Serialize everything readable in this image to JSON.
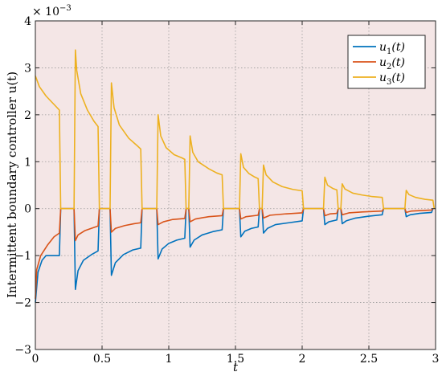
{
  "chart_data": {
    "type": "line",
    "title": "",
    "xlabel": "t",
    "ylabel": "Intermittent boundary controller u(t)",
    "exponent_label": "× 10",
    "exponent_power": "−3",
    "xlim": [
      0,
      3
    ],
    "ylim": [
      -3,
      4
    ],
    "grid": true,
    "legend_position": "top-right",
    "x_ticks": [
      "0",
      "0.5",
      "1",
      "1.5",
      "2",
      "2.5",
      "3"
    ],
    "y_ticks": [
      "−3",
      "−2",
      "−1",
      "0",
      "1",
      "2",
      "3",
      "4"
    ],
    "background_color": "#f4e6e6",
    "series": [
      {
        "name": "u1(t)",
        "legend_main": "u",
        "legend_sub": "1",
        "legend_arg": "(t)",
        "color": "#0072bd",
        "points": [
          [
            0,
            -2.0
          ],
          [
            0.02,
            -1.35
          ],
          [
            0.05,
            -1.1
          ],
          [
            0.08,
            -1.0
          ],
          [
            0.18,
            -1.0
          ],
          [
            0.19,
            0
          ],
          [
            0.29,
            0
          ],
          [
            0.3,
            -1.72
          ],
          [
            0.32,
            -1.32
          ],
          [
            0.36,
            -1.1
          ],
          [
            0.42,
            -0.98
          ],
          [
            0.47,
            -0.9
          ],
          [
            0.48,
            0
          ],
          [
            0.56,
            0
          ],
          [
            0.57,
            -1.42
          ],
          [
            0.6,
            -1.15
          ],
          [
            0.66,
            -0.98
          ],
          [
            0.73,
            -0.88
          ],
          [
            0.79,
            -0.84
          ],
          [
            0.8,
            0
          ],
          [
            0.91,
            0
          ],
          [
            0.92,
            -1.07
          ],
          [
            0.95,
            -0.86
          ],
          [
            1.0,
            -0.74
          ],
          [
            1.06,
            -0.67
          ],
          [
            1.12,
            -0.63
          ],
          [
            1.13,
            0
          ],
          [
            1.15,
            0
          ],
          [
            1.16,
            -0.82
          ],
          [
            1.19,
            -0.67
          ],
          [
            1.25,
            -0.56
          ],
          [
            1.33,
            -0.49
          ],
          [
            1.4,
            -0.45
          ],
          [
            1.41,
            0
          ],
          [
            1.53,
            0
          ],
          [
            1.54,
            -0.6
          ],
          [
            1.57,
            -0.48
          ],
          [
            1.62,
            -0.42
          ],
          [
            1.67,
            -0.39
          ],
          [
            1.68,
            0
          ],
          [
            1.7,
            0
          ],
          [
            1.71,
            -0.52
          ],
          [
            1.74,
            -0.42
          ],
          [
            1.8,
            -0.34
          ],
          [
            1.9,
            -0.3
          ],
          [
            2.0,
            -0.26
          ],
          [
            2.01,
            0
          ],
          [
            2.16,
            0
          ],
          [
            2.17,
            -0.34
          ],
          [
            2.2,
            -0.28
          ],
          [
            2.26,
            -0.24
          ],
          [
            2.27,
            0
          ],
          [
            2.29,
            0
          ],
          [
            2.3,
            -0.32
          ],
          [
            2.33,
            -0.26
          ],
          [
            2.4,
            -0.2
          ],
          [
            2.5,
            -0.16
          ],
          [
            2.6,
            -0.13
          ],
          [
            2.61,
            0
          ],
          [
            2.77,
            0
          ],
          [
            2.78,
            -0.17
          ],
          [
            2.81,
            -0.13
          ],
          [
            2.88,
            -0.1
          ],
          [
            2.97,
            -0.08
          ],
          [
            2.98,
            0
          ]
        ]
      },
      {
        "name": "u2(t)",
        "legend_main": "u",
        "legend_sub": "2",
        "legend_arg": "(t)",
        "color": "#d95319",
        "points": [
          [
            0,
            -1.92
          ],
          [
            0.01,
            -1.3
          ],
          [
            0.04,
            -1.0
          ],
          [
            0.09,
            -0.78
          ],
          [
            0.14,
            -0.6
          ],
          [
            0.18,
            -0.52
          ],
          [
            0.19,
            0
          ],
          [
            0.29,
            0
          ],
          [
            0.3,
            -0.68
          ],
          [
            0.32,
            -0.56
          ],
          [
            0.37,
            -0.47
          ],
          [
            0.43,
            -0.41
          ],
          [
            0.47,
            -0.37
          ],
          [
            0.48,
            0
          ],
          [
            0.56,
            0
          ],
          [
            0.57,
            -0.5
          ],
          [
            0.6,
            -0.42
          ],
          [
            0.67,
            -0.36
          ],
          [
            0.74,
            -0.32
          ],
          [
            0.79,
            -0.3
          ],
          [
            0.8,
            0
          ],
          [
            0.91,
            0
          ],
          [
            0.92,
            -0.34
          ],
          [
            0.96,
            -0.28
          ],
          [
            1.03,
            -0.23
          ],
          [
            1.12,
            -0.21
          ],
          [
            1.13,
            0
          ],
          [
            1.15,
            0
          ],
          [
            1.16,
            -0.28
          ],
          [
            1.2,
            -0.22
          ],
          [
            1.3,
            -0.17
          ],
          [
            1.4,
            -0.15
          ],
          [
            1.41,
            0
          ],
          [
            1.53,
            0
          ],
          [
            1.54,
            -0.22
          ],
          [
            1.58,
            -0.17
          ],
          [
            1.67,
            -0.14
          ],
          [
            1.68,
            0
          ],
          [
            1.7,
            0
          ],
          [
            1.71,
            -0.2
          ],
          [
            1.76,
            -0.14
          ],
          [
            1.88,
            -0.11
          ],
          [
            2.0,
            -0.09
          ],
          [
            2.01,
            0
          ],
          [
            2.16,
            0
          ],
          [
            2.17,
            -0.15
          ],
          [
            2.21,
            -0.11
          ],
          [
            2.26,
            -0.1
          ],
          [
            2.27,
            0
          ],
          [
            2.29,
            0
          ],
          [
            2.3,
            -0.13
          ],
          [
            2.35,
            -0.09
          ],
          [
            2.45,
            -0.07
          ],
          [
            2.6,
            -0.05
          ],
          [
            2.61,
            0
          ],
          [
            2.77,
            0
          ],
          [
            2.78,
            -0.08
          ],
          [
            2.82,
            -0.05
          ],
          [
            2.97,
            -0.03
          ],
          [
            2.98,
            0
          ]
        ]
      },
      {
        "name": "u3(t)",
        "legend_main": "u",
        "legend_sub": "3",
        "legend_arg": "(t)",
        "color": "#edb120",
        "points": [
          [
            0,
            2.83
          ],
          [
            0.03,
            2.6
          ],
          [
            0.08,
            2.4
          ],
          [
            0.13,
            2.25
          ],
          [
            0.18,
            2.1
          ],
          [
            0.19,
            0
          ],
          [
            0.29,
            0
          ],
          [
            0.3,
            3.38
          ],
          [
            0.31,
            2.95
          ],
          [
            0.34,
            2.45
          ],
          [
            0.39,
            2.1
          ],
          [
            0.44,
            1.86
          ],
          [
            0.47,
            1.75
          ],
          [
            0.48,
            0
          ],
          [
            0.56,
            0
          ],
          [
            0.57,
            2.68
          ],
          [
            0.59,
            2.15
          ],
          [
            0.63,
            1.78
          ],
          [
            0.7,
            1.5
          ],
          [
            0.76,
            1.35
          ],
          [
            0.79,
            1.27
          ],
          [
            0.8,
            0
          ],
          [
            0.91,
            0
          ],
          [
            0.92,
            2.0
          ],
          [
            0.94,
            1.55
          ],
          [
            0.98,
            1.3
          ],
          [
            1.04,
            1.15
          ],
          [
            1.1,
            1.08
          ],
          [
            1.12,
            1.05
          ],
          [
            1.13,
            0
          ],
          [
            1.15,
            0
          ],
          [
            1.16,
            1.55
          ],
          [
            1.18,
            1.2
          ],
          [
            1.22,
            1.0
          ],
          [
            1.3,
            0.85
          ],
          [
            1.36,
            0.76
          ],
          [
            1.4,
            0.72
          ],
          [
            1.41,
            0
          ],
          [
            1.53,
            0
          ],
          [
            1.54,
            1.17
          ],
          [
            1.56,
            0.88
          ],
          [
            1.6,
            0.75
          ],
          [
            1.64,
            0.68
          ],
          [
            1.67,
            0.64
          ],
          [
            1.68,
            0
          ],
          [
            1.7,
            0
          ],
          [
            1.71,
            0.93
          ],
          [
            1.73,
            0.72
          ],
          [
            1.78,
            0.57
          ],
          [
            1.85,
            0.47
          ],
          [
            1.93,
            0.41
          ],
          [
            2.0,
            0.38
          ],
          [
            2.01,
            0
          ],
          [
            2.16,
            0
          ],
          [
            2.17,
            0.67
          ],
          [
            2.19,
            0.5
          ],
          [
            2.23,
            0.43
          ],
          [
            2.26,
            0.4
          ],
          [
            2.27,
            0
          ],
          [
            2.29,
            0
          ],
          [
            2.3,
            0.53
          ],
          [
            2.32,
            0.42
          ],
          [
            2.38,
            0.33
          ],
          [
            2.45,
            0.29
          ],
          [
            2.52,
            0.26
          ],
          [
            2.6,
            0.24
          ],
          [
            2.61,
            0
          ],
          [
            2.77,
            0
          ],
          [
            2.78,
            0.39
          ],
          [
            2.8,
            0.3
          ],
          [
            2.85,
            0.24
          ],
          [
            2.92,
            0.2
          ],
          [
            2.98,
            0.18
          ],
          [
            2.99,
            0
          ]
        ]
      }
    ]
  }
}
